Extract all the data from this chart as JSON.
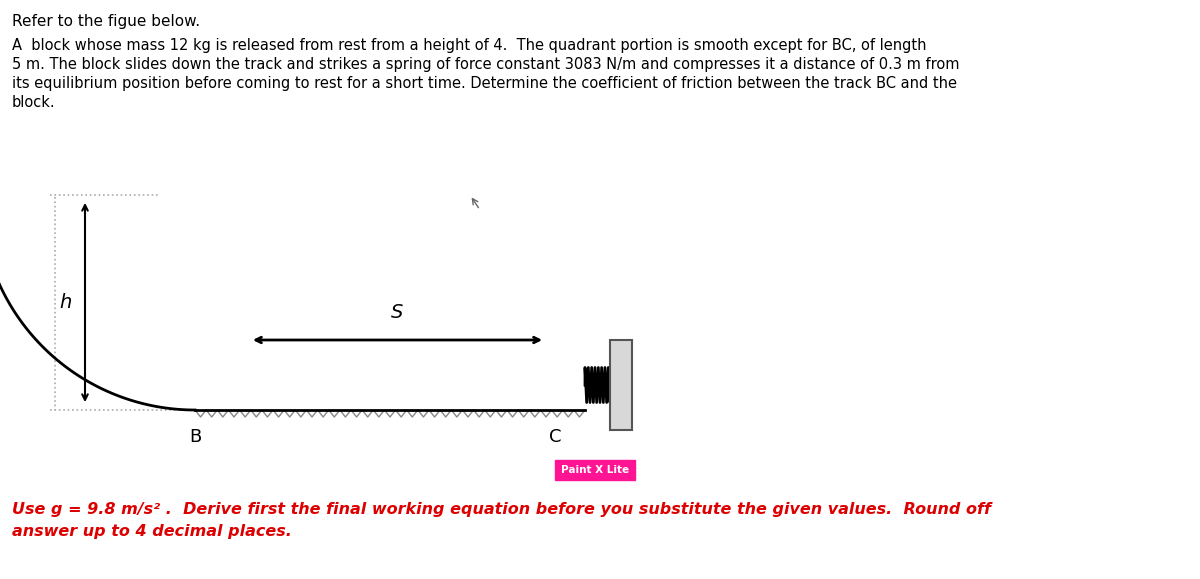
{
  "bg_color": "#ffffff",
  "text_color": "#000000",
  "red_text_color": "#dd0000",
  "title_line1": "Refer to the figue below.",
  "problem_line1": "A  block whose mass 12 kg is released from rest from a height of 4.  The quadrant portion is smooth except for BC, of length",
  "problem_line2": "5 m. The block slides down the track and strikes a spring of force constant 3083 N/m and compresses it a distance of 0.3 m from",
  "problem_line3": "its equilibrium position before coming to rest for a short time. Determine the coefficient of friction between the track BC and the",
  "problem_line4": "block.",
  "bottom_line1": "Use g = 9.8 m/s² .  Derive first the final working equation before you substitute the given values.  Round off",
  "bottom_line2": "answer up to 4 decimal places.",
  "paint_label": "Paint X Lite",
  "paint_bg": "#ff1493",
  "paint_text": "#ffffff",
  "fig_width": 12.0,
  "fig_height": 5.79
}
